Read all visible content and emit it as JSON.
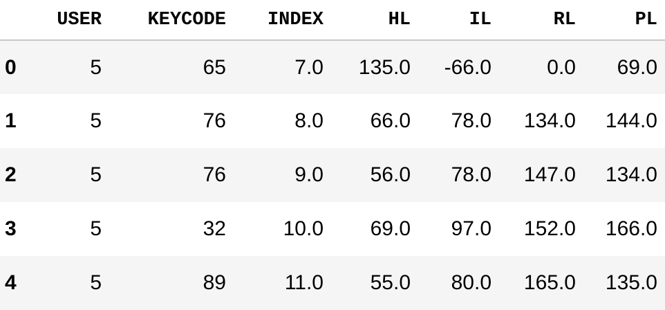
{
  "columns": [
    "USER",
    "KEYCODE",
    "INDEX",
    "HL",
    "IL",
    "RL",
    "PL"
  ],
  "rows": [
    {
      "index": "0",
      "cells": [
        "5",
        "65",
        "7.0",
        "135.0",
        "-66.0",
        "0.0",
        "69.0"
      ]
    },
    {
      "index": "1",
      "cells": [
        "5",
        "76",
        "8.0",
        "66.0",
        "78.0",
        "134.0",
        "144.0"
      ]
    },
    {
      "index": "2",
      "cells": [
        "5",
        "76",
        "9.0",
        "56.0",
        "78.0",
        "147.0",
        "134.0"
      ]
    },
    {
      "index": "3",
      "cells": [
        "5",
        "32",
        "10.0",
        "69.0",
        "97.0",
        "152.0",
        "166.0"
      ]
    },
    {
      "index": "4",
      "cells": [
        "5",
        "89",
        "11.0",
        "55.0",
        "80.0",
        "165.0",
        "135.0"
      ]
    }
  ],
  "colors": {
    "stripe": "#f5f5f5",
    "header_border": "#c8c8c8",
    "text": "#000000"
  }
}
